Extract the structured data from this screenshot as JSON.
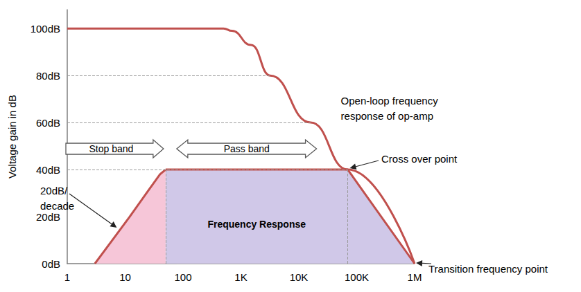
{
  "chart_data": {
    "type": "line",
    "ylabel": "Voltage gain in dB",
    "log": "x",
    "grid": false,
    "xlim": [
      1,
      1000000
    ],
    "xticks": [
      1,
      10,
      100,
      {
        "value": 1000,
        "label": "1K"
      },
      {
        "value": 10000,
        "label": "10K"
      },
      {
        "value": 100000,
        "label": "100K"
      },
      {
        "value": 1000000,
        "label": "1M"
      }
    ],
    "ylim": [
      0,
      108
    ],
    "yticks": [
      {
        "value": 0,
        "label": "0dB"
      },
      {
        "value": 20,
        "label": "20dB"
      },
      {
        "value": 40,
        "label": "40dB"
      },
      {
        "value": 60,
        "label": "60dB"
      },
      {
        "value": 80,
        "label": "80dB"
      },
      {
        "value": 100,
        "label": "100dB"
      }
    ],
    "series": [
      {
        "name": "Frequency Response",
        "color": "#c0504d",
        "colors": [
          "#f6c6d8",
          "#d0c8e8"
        ],
        "x": [
          3,
          6,
          12,
          25,
          40,
          50,
          70000,
          1000000
        ],
        "values": [
          0,
          10,
          20,
          31,
          38,
          40,
          40,
          0
        ]
      },
      {
        "name": "Open-loop frequency response of op-amp",
        "color": "#c0504d",
        "x": [
          1,
          500,
          700,
          1500,
          3200,
          16000,
          70000,
          1000000
        ],
        "values": [
          100,
          100,
          99,
          93,
          80,
          60,
          40,
          0
        ]
      }
    ],
    "band_edges": [
      50,
      70000
    ],
    "bands": [
      "Stop band",
      "Pass band"
    ],
    "annotations": [
      "Cross over point",
      "Transition frequency point",
      "20dB/\ndecade"
    ]
  }
}
